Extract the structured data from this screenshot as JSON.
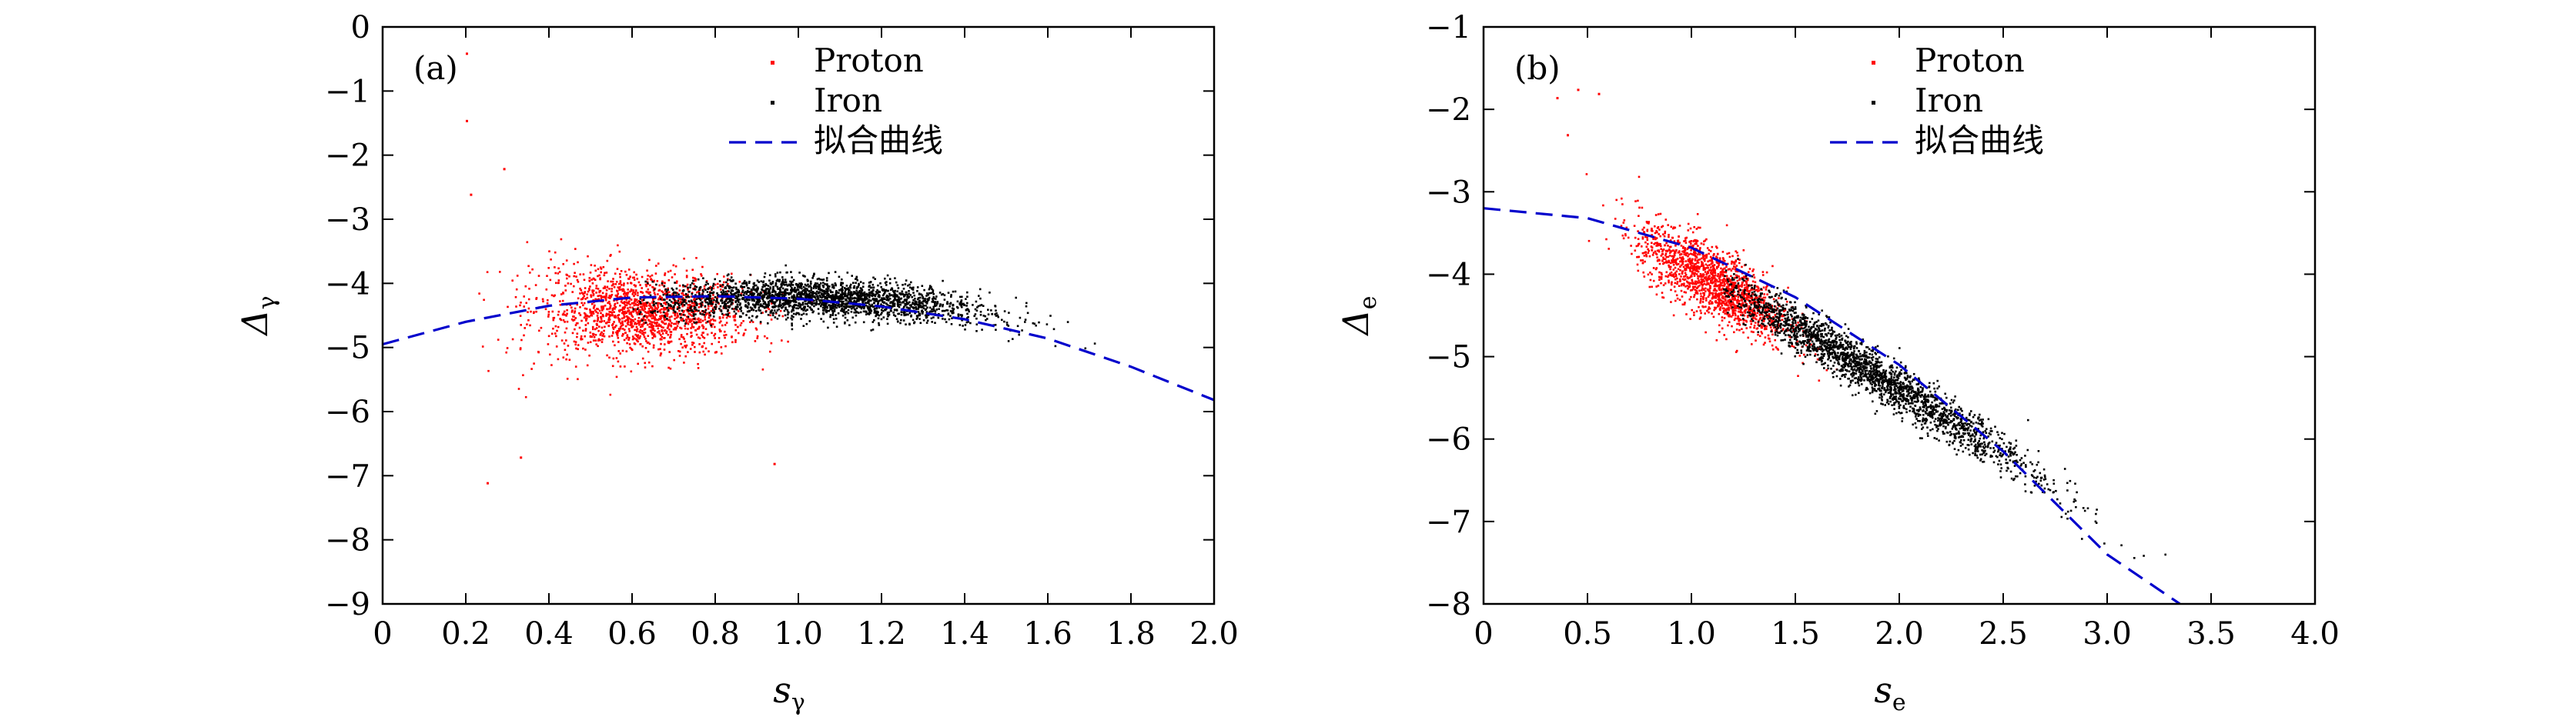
{
  "chart_data": [
    {
      "type": "scatter",
      "panel_label": "(a)",
      "xlabel": "s",
      "xlabel_sub": "γ",
      "ylabel": "Δ",
      "ylabel_sub": "γ",
      "xlim": [
        0,
        2.0
      ],
      "ylim": [
        -9,
        0
      ],
      "xticks": [
        "0",
        "0.2",
        "0.4",
        "0.6",
        "0.8",
        "1.0",
        "1.2",
        "1.4",
        "1.6",
        "1.8",
        "2.0"
      ],
      "yticks": [
        "0",
        "−1",
        "−2",
        "−3",
        "−4",
        "−5",
        "−6",
        "−7",
        "−8",
        "−9"
      ],
      "legend": {
        "position": "top-right",
        "entries": [
          "Proton",
          "Iron",
          "拟合曲线"
        ]
      },
      "grid": false,
      "series": [
        {
          "name": "Proton",
          "color": "#ff0000",
          "marker": "dot",
          "cluster": {
            "x_center": 0.62,
            "x_spread": 0.13,
            "y_center": -4.45,
            "y_spread": 0.32,
            "x_range": [
              0.2,
              1.3
            ]
          },
          "outliers": [
            [
              0.2,
              -0.4
            ],
            [
              0.2,
              -1.45
            ],
            [
              0.25,
              -7.1
            ],
            [
              0.33,
              -6.7
            ],
            [
              0.94,
              -6.8
            ],
            [
              0.29,
              -2.2
            ],
            [
              0.21,
              -2.6
            ]
          ]
        },
        {
          "name": "Iron",
          "color": "#000000",
          "marker": "dot",
          "cluster": {
            "x_center": 1.05,
            "x_spread": 0.2,
            "y_center": -4.3,
            "y_spread": 0.15,
            "x_range": [
              0.6,
              1.75
            ]
          }
        },
        {
          "name": "拟合曲线",
          "color": "#0000cc",
          "style": "dashed",
          "x": [
            0,
            0.2,
            0.4,
            0.6,
            0.8,
            1.0,
            1.2,
            1.4,
            1.6,
            1.8,
            2.0
          ],
          "y": [
            -4.95,
            -4.6,
            -4.35,
            -4.22,
            -4.2,
            -4.24,
            -4.36,
            -4.56,
            -4.86,
            -5.3,
            -5.82
          ]
        }
      ]
    },
    {
      "type": "scatter",
      "panel_label": "(b)",
      "xlabel": "s",
      "xlabel_sub": "e",
      "ylabel": "Δ",
      "ylabel_sub": "e",
      "xlim": [
        0,
        4.0
      ],
      "ylim": [
        -8,
        -1
      ],
      "xticks": [
        "0",
        "0.5",
        "1.0",
        "1.5",
        "2.0",
        "2.5",
        "3.0",
        "3.5",
        "4.0"
      ],
      "yticks": [
        "−1",
        "−2",
        "−3",
        "−4",
        "−5",
        "−6",
        "−7",
        "−8"
      ],
      "legend": {
        "position": "top-right",
        "entries": [
          "Proton",
          "Iron",
          "拟合曲线"
        ]
      },
      "grid": false,
      "series": [
        {
          "name": "Proton",
          "color": "#ff0000",
          "marker": "dot",
          "band": {
            "x_center": 1.1,
            "x_spread": 0.18,
            "x_range": [
              0.3,
              1.7
            ],
            "slope": -1.4,
            "intercept": -2.55,
            "y_spread": 0.22
          },
          "outliers": [
            [
              0.35,
              -1.85
            ],
            [
              0.45,
              -1.75
            ],
            [
              0.55,
              -1.8
            ],
            [
              0.4,
              -2.3
            ]
          ]
        },
        {
          "name": "Iron",
          "color": "#000000",
          "marker": "dot",
          "band": {
            "x_center": 1.85,
            "x_spread": 0.4,
            "x_range": [
              1.15,
              3.4
            ],
            "slope": -1.52,
            "intercept": -2.35,
            "y_spread": 0.14
          }
        },
        {
          "name": "拟合曲线",
          "color": "#0000cc",
          "style": "dashed",
          "x": [
            0,
            0.5,
            1.0,
            1.5,
            2.0,
            2.5,
            3.0,
            3.35
          ],
          "y": [
            -3.2,
            -3.32,
            -3.68,
            -4.28,
            -5.1,
            -6.15,
            -7.4,
            -8.0
          ]
        }
      ]
    }
  ]
}
